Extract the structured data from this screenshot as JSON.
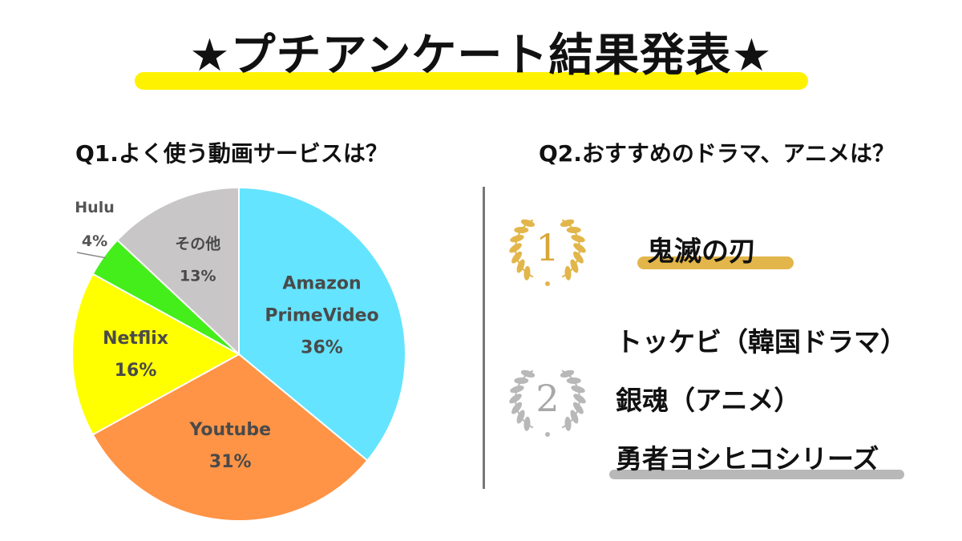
{
  "title": "★プチアンケート結果発表★",
  "colors": {
    "title_highlight": "#fff200",
    "gold": "#e2b64a",
    "silver": "#b8b8b8",
    "divider": "#777777"
  },
  "q1": {
    "heading": "Q1.よく使う動画サービスは？"
  },
  "q2": {
    "heading": "Q2.おすすめのドラマ、アニメは？",
    "rank1": {
      "icon": "gold-laurel-icon",
      "number": "1",
      "items": [
        "鬼滅の刃"
      ]
    },
    "rank2": {
      "icon": "silver-laurel-icon",
      "number": "2",
      "items": [
        "トッケビ（韓国ドラマ）",
        "銀魂（アニメ）",
        "勇者ヨシヒコシリーズ"
      ]
    }
  },
  "chart_data": {
    "type": "pie",
    "title": "Q1.よく使う動画サービスは？",
    "slices": [
      {
        "label": "Amazon PrimeVideo",
        "label_lines": [
          "Amazon",
          "PrimeVideo"
        ],
        "pct_label": "36%",
        "value": 36,
        "color": "#64e4ff"
      },
      {
        "label": "Youtube",
        "label_lines": [
          "Youtube"
        ],
        "pct_label": "31%",
        "value": 31,
        "color": "#ff9446"
      },
      {
        "label": "Netflix",
        "label_lines": [
          "Netflix"
        ],
        "pct_label": "16%",
        "value": 16,
        "color": "#ffff00"
      },
      {
        "label": "Hulu",
        "label_lines": [
          "Hulu"
        ],
        "pct_label": "4%",
        "value": 4,
        "color": "#44ee1a"
      },
      {
        "label": "その他",
        "label_lines": [
          "その他"
        ],
        "pct_label": "13%",
        "value": 13,
        "color": "#c8c6c6"
      }
    ],
    "start": "12 o'clock",
    "direction": "clockwise",
    "legend": "none"
  }
}
